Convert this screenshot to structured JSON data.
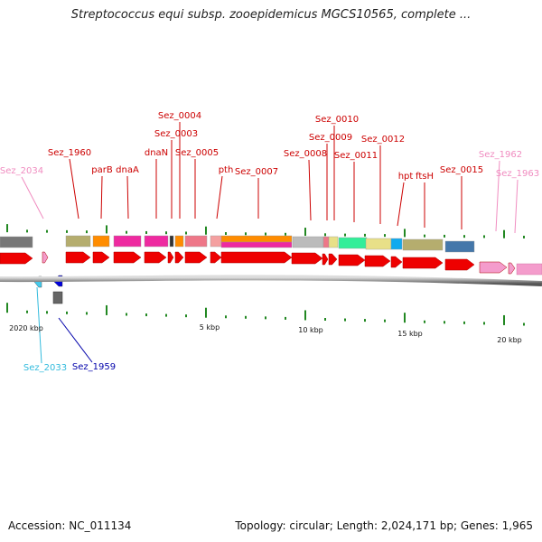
{
  "title": "Streptococcus equi subsp. zooepidemicus MGCS10565, complete ...",
  "footer": {
    "accession": "Accession: NC_011134",
    "summary": "Topology: circular; Length: 2,024,171 bp; Genes: 1,965"
  },
  "axis_labels": [
    "2020 kbp",
    "5 kbp",
    "10 kbp",
    "15 kbp",
    "20 kbp"
  ],
  "gene_labels": [
    {
      "text": "Sez_2034",
      "color": "#f08cc0"
    },
    {
      "text": "Sez_1960",
      "color": "#cc0000"
    },
    {
      "text": "parB",
      "color": "#cc0000"
    },
    {
      "text": "dnaA",
      "color": "#cc0000"
    },
    {
      "text": "dnaN",
      "color": "#cc0000"
    },
    {
      "text": "Sez_0004",
      "color": "#cc0000"
    },
    {
      "text": "Sez_0003",
      "color": "#cc0000"
    },
    {
      "text": "Sez_0005",
      "color": "#cc0000"
    },
    {
      "text": "pth",
      "color": "#cc0000"
    },
    {
      "text": "Sez_0007",
      "color": "#cc0000"
    },
    {
      "text": "Sez_0008",
      "color": "#cc0000"
    },
    {
      "text": "Sez_0010",
      "color": "#cc0000"
    },
    {
      "text": "Sez_0009",
      "color": "#cc0000"
    },
    {
      "text": "Sez_0011",
      "color": "#cc0000"
    },
    {
      "text": "Sez_0012",
      "color": "#cc0000"
    },
    {
      "text": "hpt",
      "color": "#cc0000"
    },
    {
      "text": "ftsH",
      "color": "#cc0000"
    },
    {
      "text": "Sez_0015",
      "color": "#cc0000"
    },
    {
      "text": "Sez_1962",
      "color": "#f08cc0"
    },
    {
      "text": "Sez_1963",
      "color": "#f08cc0"
    },
    {
      "text": "Sez_2033",
      "color": "#33bbdd"
    },
    {
      "text": "Sez_1959",
      "color": "#0000aa"
    }
  ],
  "colors": {
    "forward_gene": "#ee0000",
    "reverse_gene_light": "#44ccee",
    "reverse_gene_dark": "#0000dd",
    "pseudo_gene": "#f49ccc",
    "backbone": "#888888",
    "tick": "#228822"
  }
}
